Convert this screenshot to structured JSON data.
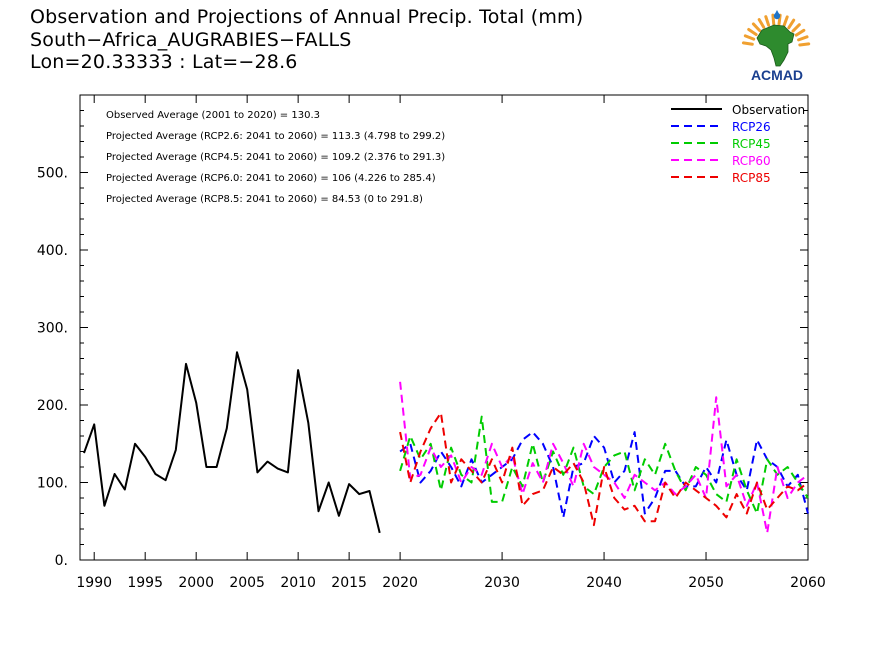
{
  "header": {
    "title_line1": "Observation and Projections of Annual Precip. Total (mm)",
    "title_line2": "South−Africa_AUGRABIES−FALLS",
    "title_line3": "Lon=20.33333 : Lat=−28.6"
  },
  "logo": {
    "text": "ACMAD",
    "icon": "africa-map-logo-icon",
    "color": "#1a3f8f",
    "accent": "#f0a030"
  },
  "stats": [
    "Observed Average (2001 to 2020) = 130.3",
    "Projected Average (RCP2.6: 2041 to 2060) = 113.3 (4.798 to 299.2)",
    "Projected Average (RCP4.5: 2041 to 2060) = 109.2 (2.376 to 291.3)",
    "Projected Average (RCP6.0: 2041 to 2060) = 106 (4.226 to 285.4)",
    "Projected Average (RCP8.5: 2041 to 2060) = 84.53 (0 to 291.8)"
  ],
  "chart_data": {
    "type": "line",
    "xlim": [
      1989,
      2060
    ],
    "ylim": [
      0,
      600
    ],
    "xticks": [
      1990,
      1995,
      2000,
      2005,
      2010,
      2015,
      2020,
      2030,
      2040,
      2050,
      2060
    ],
    "yticks": [
      0,
      100,
      200,
      300,
      400,
      500
    ],
    "ytick_labels": [
      "0.",
      "100.",
      "200.",
      "300.",
      "400.",
      "500."
    ],
    "grid": false,
    "legend_position": "top-right",
    "series": [
      {
        "name": "Observation",
        "color": "#000000",
        "style": "solid",
        "x": [
          1989,
          1990,
          1991,
          1992,
          1993,
          1994,
          1995,
          1996,
          1997,
          1998,
          1999,
          2000,
          2001,
          2002,
          2003,
          2004,
          2005,
          2006,
          2007,
          2008,
          2009,
          2010,
          2011,
          2012,
          2013,
          2014,
          2015,
          2016,
          2017,
          2018,
          2019
        ],
        "values": [
          138,
          175,
          70,
          111,
          91,
          150,
          133,
          111,
          103,
          142,
          253,
          203,
          120,
          120,
          170,
          268,
          220,
          113,
          127,
          118,
          113,
          245,
          177,
          63,
          100,
          57,
          98,
          85,
          89,
          35,
          null
        ]
      },
      {
        "name": "RCP26",
        "color": "#0000ff",
        "style": "dashed",
        "x": [
          2020,
          2021,
          2022,
          2023,
          2024,
          2025,
          2026,
          2027,
          2028,
          2029,
          2030,
          2031,
          2032,
          2033,
          2034,
          2035,
          2036,
          2037,
          2038,
          2039,
          2040,
          2041,
          2042,
          2043,
          2044,
          2045,
          2046,
          2047,
          2048,
          2049,
          2050,
          2051,
          2052,
          2053,
          2054,
          2055,
          2056,
          2057,
          2058,
          2059,
          2060
        ],
        "values": [
          140,
          150,
          100,
          115,
          140,
          120,
          95,
          130,
          100,
          110,
          120,
          130,
          155,
          165,
          150,
          120,
          55,
          120,
          125,
          160,
          145,
          100,
          115,
          165,
          60,
          80,
          115,
          115,
          95,
          95,
          120,
          100,
          155,
          110,
          90,
          155,
          130,
          120,
          95,
          110,
          60
        ]
      },
      {
        "name": "RCP45",
        "color": "#00cc00",
        "style": "dashed",
        "x": [
          2020,
          2021,
          2022,
          2023,
          2024,
          2025,
          2026,
          2027,
          2028,
          2029,
          2030,
          2031,
          2032,
          2033,
          2034,
          2035,
          2036,
          2037,
          2038,
          2039,
          2040,
          2041,
          2042,
          2043,
          2044,
          2045,
          2046,
          2047,
          2048,
          2049,
          2050,
          2051,
          2052,
          2053,
          2054,
          2055,
          2056,
          2057,
          2058,
          2059,
          2060
        ],
        "values": [
          115,
          160,
          130,
          150,
          90,
          145,
          110,
          100,
          185,
          75,
          75,
          120,
          95,
          150,
          100,
          140,
          110,
          145,
          95,
          85,
          120,
          135,
          140,
          90,
          130,
          110,
          150,
          115,
          90,
          120,
          110,
          85,
          75,
          130,
          90,
          60,
          130,
          110,
          120,
          100,
          80
        ]
      },
      {
        "name": "RCP60",
        "color": "#ff00ff",
        "style": "dashed",
        "x": [
          2020,
          2021,
          2022,
          2023,
          2024,
          2025,
          2026,
          2027,
          2028,
          2029,
          2030,
          2031,
          2032,
          2033,
          2034,
          2035,
          2036,
          2037,
          2038,
          2039,
          2040,
          2041,
          2042,
          2043,
          2044,
          2045,
          2046,
          2047,
          2048,
          2049,
          2050,
          2051,
          2052,
          2053,
          2054,
          2055,
          2056,
          2057,
          2058,
          2059,
          2060
        ],
        "values": [
          230,
          105,
          110,
          145,
          120,
          135,
          100,
          120,
          110,
          150,
          120,
          135,
          85,
          125,
          100,
          150,
          125,
          95,
          150,
          120,
          110,
          100,
          80,
          110,
          100,
          90,
          100,
          85,
          95,
          110,
          80,
          210,
          95,
          110,
          70,
          100,
          35,
          120,
          80,
          100,
          110
        ]
      },
      {
        "name": "RCP85",
        "color": "#ee0000",
        "style": "dashed",
        "x": [
          2020,
          2021,
          2022,
          2023,
          2024,
          2025,
          2026,
          2027,
          2028,
          2029,
          2030,
          2031,
          2032,
          2033,
          2034,
          2035,
          2036,
          2037,
          2038,
          2039,
          2040,
          2041,
          2042,
          2043,
          2044,
          2045,
          2046,
          2047,
          2048,
          2049,
          2050,
          2051,
          2052,
          2053,
          2054,
          2055,
          2056,
          2057,
          2058,
          2059,
          2060
        ],
        "values": [
          165,
          100,
          140,
          170,
          190,
          100,
          130,
          115,
          100,
          130,
          100,
          145,
          70,
          85,
          90,
          120,
          110,
          125,
          100,
          45,
          120,
          80,
          65,
          70,
          50,
          50,
          100,
          80,
          100,
          90,
          80,
          70,
          55,
          85,
          60,
          100,
          65,
          80,
          95,
          90,
          100
        ]
      }
    ]
  }
}
